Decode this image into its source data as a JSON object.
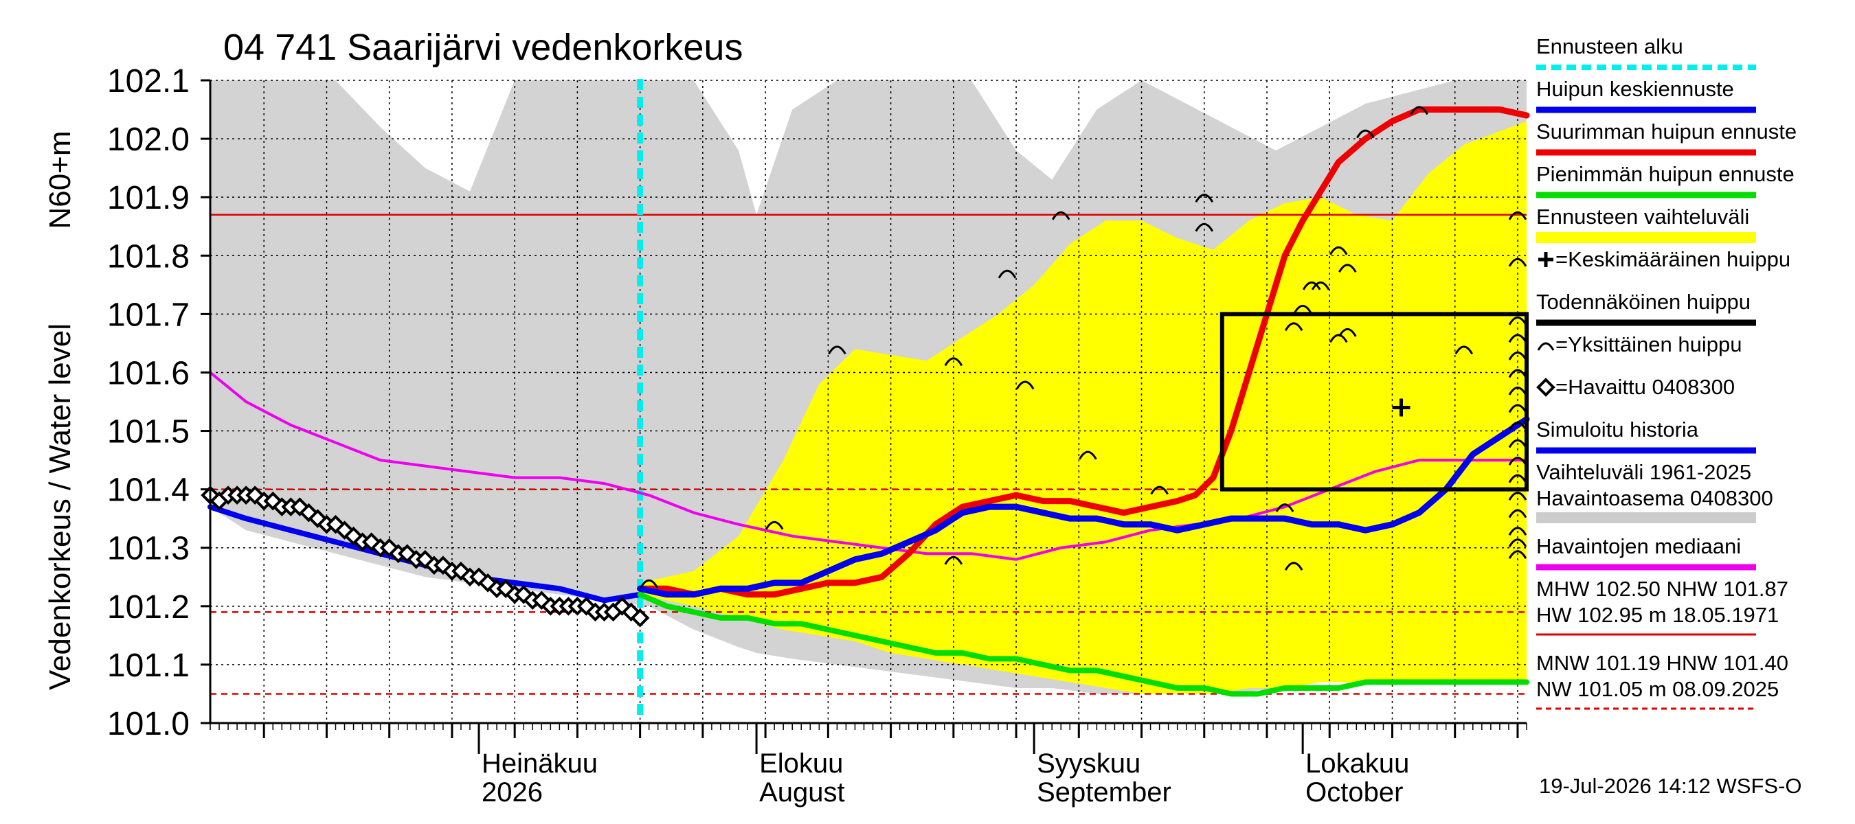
{
  "chart_data": {
    "type": "line",
    "title": "04 741 Saarijärvi vedenkorkeus",
    "ylabel_main": "Vedenkorkeus / Water level",
    "ylabel_unit": "N60+m",
    "ylim": [
      101.0,
      102.1
    ],
    "yticks": [
      "101.0",
      "101.1",
      "101.2",
      "101.3",
      "101.4",
      "101.5",
      "101.6",
      "101.7",
      "101.8",
      "101.9",
      "102.0",
      "102.1"
    ],
    "xlim": [
      "2026-06-01",
      "2026-10-26"
    ],
    "month_labels": [
      {
        "date": "2026-07-01",
        "line1": "Heinäkuu",
        "line2": "2026"
      },
      {
        "date": "2026-08-01",
        "line1": "Elokuu",
        "line2": "August"
      },
      {
        "date": "2026-09-01",
        "line1": "Syyskuu",
        "line2": "September"
      },
      {
        "date": "2026-10-01",
        "line1": "Lokakuu",
        "line2": "October"
      }
    ],
    "forecast_start": "2026-07-19",
    "reference_lines": [
      {
        "name": "NHW",
        "value": 101.87,
        "color": "#dd0000",
        "style": "solid"
      },
      {
        "name": "HNW",
        "value": 101.4,
        "color": "#dd0000",
        "style": "dashed"
      },
      {
        "name": "MNW",
        "value": 101.19,
        "color": "#dd0000",
        "style": "dashed"
      },
      {
        "name": "NW",
        "value": 101.05,
        "color": "#dd0000",
        "style": "dashed"
      }
    ],
    "history_band": {
      "x": [
        "2026-06-01",
        "2026-06-05",
        "2026-06-10",
        "2026-06-15",
        "2026-06-20",
        "2026-06-25",
        "2026-06-30",
        "2026-07-05",
        "2026-07-10",
        "2026-07-15",
        "2026-07-20",
        "2026-07-25",
        "2026-07-30",
        "2026-08-01",
        "2026-08-05",
        "2026-08-10",
        "2026-08-15",
        "2026-08-20",
        "2026-08-25",
        "2026-08-30",
        "2026-09-03",
        "2026-09-08",
        "2026-09-13",
        "2026-09-18",
        "2026-09-23",
        "2026-09-28",
        "2026-10-03",
        "2026-10-08",
        "2026-10-13",
        "2026-10-18",
        "2026-10-26"
      ],
      "upper": [
        102.1,
        102.1,
        102.1,
        102.1,
        102.02,
        101.95,
        101.91,
        102.1,
        102.1,
        102.1,
        102.1,
        102.1,
        101.98,
        101.87,
        102.05,
        102.1,
        102.1,
        102.1,
        102.1,
        101.98,
        101.93,
        102.05,
        102.1,
        102.06,
        102.02,
        101.98,
        102.02,
        102.06,
        102.08,
        102.1,
        102.1
      ],
      "lower": [
        101.37,
        101.33,
        101.31,
        101.29,
        101.27,
        101.25,
        101.24,
        101.23,
        101.22,
        101.21,
        101.2,
        101.16,
        101.13,
        101.12,
        101.11,
        101.1,
        101.09,
        101.08,
        101.07,
        101.06,
        101.06,
        101.05,
        101.05,
        101.05,
        101.05,
        101.06,
        101.07,
        101.08,
        101.09,
        101.1,
        101.12
      ]
    },
    "forecast_band": {
      "x": [
        "2026-07-19",
        "2026-07-25",
        "2026-07-30",
        "2026-08-04",
        "2026-08-08",
        "2026-08-12",
        "2026-08-16",
        "2026-08-20",
        "2026-08-24",
        "2026-08-28",
        "2026-09-01",
        "2026-09-05",
        "2026-09-09",
        "2026-09-13",
        "2026-09-17",
        "2026-09-21",
        "2026-09-25",
        "2026-09-29",
        "2026-10-03",
        "2026-10-07",
        "2026-10-11",
        "2026-10-15",
        "2026-10-19",
        "2026-10-26"
      ],
      "upper": [
        101.24,
        101.26,
        101.32,
        101.45,
        101.58,
        101.64,
        101.63,
        101.62,
        101.66,
        101.7,
        101.75,
        101.82,
        101.86,
        101.86,
        101.83,
        101.81,
        101.86,
        101.89,
        101.9,
        101.87,
        101.86,
        101.94,
        101.99,
        102.03
      ],
      "lower": [
        101.22,
        101.2,
        101.18,
        101.16,
        101.15,
        101.14,
        101.12,
        101.11,
        101.1,
        101.09,
        101.08,
        101.07,
        101.06,
        101.05,
        101.05,
        101.05,
        101.06,
        101.06,
        101.07,
        101.07,
        101.07,
        101.07,
        101.07,
        101.07
      ]
    },
    "probable_peak_box": {
      "x0": "2026-09-22",
      "x1": "2026-10-26",
      "y0": 101.4,
      "y1": 101.7
    },
    "mean_peak": {
      "x": "2026-10-12",
      "y": 101.54
    },
    "single_peaks": [
      {
        "x": "2026-07-20",
        "y": 101.24
      },
      {
        "x": "2026-08-03",
        "y": 101.34
      },
      {
        "x": "2026-08-10",
        "y": 101.64
      },
      {
        "x": "2026-08-23",
        "y": 101.62
      },
      {
        "x": "2026-08-23",
        "y": 101.28
      },
      {
        "x": "2026-08-29",
        "y": 101.77
      },
      {
        "x": "2026-08-31",
        "y": 101.58
      },
      {
        "x": "2026-09-04",
        "y": 101.87
      },
      {
        "x": "2026-09-07",
        "y": 101.46
      },
      {
        "x": "2026-09-15",
        "y": 101.4
      },
      {
        "x": "2026-09-20",
        "y": 101.9
      },
      {
        "x": "2026-09-20",
        "y": 101.85
      },
      {
        "x": "2026-09-30",
        "y": 101.68
      },
      {
        "x": "2026-10-01",
        "y": 101.71
      },
      {
        "x": "2026-09-29",
        "y": 101.37
      },
      {
        "x": "2026-09-30",
        "y": 101.27
      },
      {
        "x": "2026-10-02",
        "y": 101.75
      },
      {
        "x": "2026-10-03",
        "y": 101.75
      },
      {
        "x": "2026-10-05",
        "y": 101.81
      },
      {
        "x": "2026-10-06",
        "y": 101.78
      },
      {
        "x": "2026-10-05",
        "y": 101.66
      },
      {
        "x": "2026-10-06",
        "y": 101.67
      },
      {
        "x": "2026-10-08",
        "y": 102.01
      },
      {
        "x": "2026-10-14",
        "y": 102.05
      },
      {
        "x": "2026-10-19",
        "y": 101.64
      },
      {
        "x": "2026-10-25",
        "y": 101.87
      },
      {
        "x": "2026-10-25",
        "y": 101.79
      },
      {
        "x": "2026-10-25",
        "y": 101.69
      },
      {
        "x": "2026-10-25",
        "y": 101.66
      },
      {
        "x": "2026-10-25",
        "y": 101.63
      },
      {
        "x": "2026-10-25",
        "y": 101.6
      },
      {
        "x": "2026-10-25",
        "y": 101.57
      },
      {
        "x": "2026-10-25",
        "y": 101.54
      },
      {
        "x": "2026-10-25",
        "y": 101.51
      },
      {
        "x": "2026-10-25",
        "y": 101.48
      },
      {
        "x": "2026-10-25",
        "y": 101.45
      },
      {
        "x": "2026-10-25",
        "y": 101.42
      },
      {
        "x": "2026-10-25",
        "y": 101.39
      },
      {
        "x": "2026-10-25",
        "y": 101.36
      },
      {
        "x": "2026-10-25",
        "y": 101.33
      },
      {
        "x": "2026-10-25",
        "y": 101.31
      },
      {
        "x": "2026-10-25",
        "y": 101.29
      }
    ],
    "series": [
      {
        "name": "Havaintojen mediaani",
        "color": "#ee00ee",
        "x": [
          "2026-06-01",
          "2026-06-05",
          "2026-06-10",
          "2026-06-15",
          "2026-06-20",
          "2026-06-25",
          "2026-06-30",
          "2026-07-05",
          "2026-07-10",
          "2026-07-15",
          "2026-07-20",
          "2026-07-25",
          "2026-07-30",
          "2026-08-05",
          "2026-08-10",
          "2026-08-15",
          "2026-08-20",
          "2026-08-25",
          "2026-08-30",
          "2026-09-04",
          "2026-09-09",
          "2026-09-14",
          "2026-09-19",
          "2026-09-24",
          "2026-09-29",
          "2026-10-04",
          "2026-10-09",
          "2026-10-14",
          "2026-10-19",
          "2026-10-26"
        ],
        "values": [
          101.6,
          101.55,
          101.51,
          101.48,
          101.45,
          101.44,
          101.43,
          101.42,
          101.42,
          101.41,
          101.39,
          101.36,
          101.34,
          101.32,
          101.31,
          101.3,
          101.29,
          101.29,
          101.28,
          101.3,
          101.31,
          101.33,
          101.34,
          101.35,
          101.37,
          101.4,
          101.43,
          101.45,
          101.45,
          101.45
        ]
      },
      {
        "name": "Simuloitu historia",
        "color": "#0000ee",
        "x": [
          "2026-06-01",
          "2026-06-05",
          "2026-06-10",
          "2026-06-15",
          "2026-06-20",
          "2026-06-25",
          "2026-06-30",
          "2026-07-05",
          "2026-07-10",
          "2026-07-15",
          "2026-07-19"
        ],
        "values": [
          101.37,
          101.35,
          101.33,
          101.31,
          101.29,
          101.27,
          101.25,
          101.24,
          101.23,
          101.21,
          101.22
        ]
      },
      {
        "name": "Havaittu 0408300",
        "color": "#000000",
        "x": [
          "2026-06-01",
          "2026-06-02",
          "2026-06-03",
          "2026-06-04",
          "2026-06-05",
          "2026-06-06",
          "2026-06-07",
          "2026-06-08",
          "2026-06-09",
          "2026-06-10",
          "2026-06-11",
          "2026-06-12",
          "2026-06-13",
          "2026-06-14",
          "2026-06-15",
          "2026-06-16",
          "2026-06-17",
          "2026-06-18",
          "2026-06-19",
          "2026-06-20",
          "2026-06-21",
          "2026-06-22",
          "2026-06-23",
          "2026-06-24",
          "2026-06-25",
          "2026-06-26",
          "2026-06-27",
          "2026-06-28",
          "2026-06-29",
          "2026-06-30",
          "2026-07-01",
          "2026-07-02",
          "2026-07-03",
          "2026-07-04",
          "2026-07-05",
          "2026-07-06",
          "2026-07-07",
          "2026-07-08",
          "2026-07-09",
          "2026-07-10",
          "2026-07-11",
          "2026-07-12",
          "2026-07-13",
          "2026-07-14",
          "2026-07-15",
          "2026-07-16",
          "2026-07-17",
          "2026-07-18",
          "2026-07-19"
        ],
        "values": [
          101.39,
          101.38,
          101.39,
          101.39,
          101.39,
          101.39,
          101.38,
          101.38,
          101.37,
          101.37,
          101.37,
          101.36,
          101.35,
          101.34,
          101.34,
          101.33,
          101.32,
          101.31,
          101.31,
          101.3,
          101.3,
          101.29,
          101.29,
          101.28,
          101.28,
          101.27,
          101.27,
          101.26,
          101.26,
          101.25,
          101.25,
          101.24,
          101.23,
          101.23,
          101.22,
          101.22,
          101.21,
          101.21,
          101.2,
          101.2,
          101.2,
          101.2,
          101.2,
          101.19,
          101.19,
          101.19,
          101.2,
          101.19,
          101.18
        ]
      },
      {
        "name": "Huipun keskiennuste",
        "color": "#0000ee",
        "x": [
          "2026-07-19",
          "2026-07-22",
          "2026-07-25",
          "2026-07-28",
          "2026-07-31",
          "2026-08-03",
          "2026-08-06",
          "2026-08-09",
          "2026-08-12",
          "2026-08-15",
          "2026-08-18",
          "2026-08-21",
          "2026-08-24",
          "2026-08-27",
          "2026-08-30",
          "2026-09-02",
          "2026-09-05",
          "2026-09-08",
          "2026-09-11",
          "2026-09-14",
          "2026-09-17",
          "2026-09-20",
          "2026-09-23",
          "2026-09-26",
          "2026-09-29",
          "2026-10-02",
          "2026-10-05",
          "2026-10-08",
          "2026-10-11",
          "2026-10-14",
          "2026-10-17",
          "2026-10-20",
          "2026-10-23",
          "2026-10-26"
        ],
        "values": [
          101.23,
          101.22,
          101.22,
          101.23,
          101.23,
          101.24,
          101.24,
          101.26,
          101.28,
          101.29,
          101.31,
          101.33,
          101.36,
          101.37,
          101.37,
          101.36,
          101.35,
          101.35,
          101.34,
          101.34,
          101.33,
          101.34,
          101.35,
          101.35,
          101.35,
          101.34,
          101.34,
          101.33,
          101.34,
          101.36,
          101.4,
          101.46,
          101.49,
          101.52
        ]
      },
      {
        "name": "Suurimman huipun ennuste",
        "color": "#ee0000",
        "x": [
          "2026-07-19",
          "2026-07-22",
          "2026-07-25",
          "2026-07-28",
          "2026-07-31",
          "2026-08-03",
          "2026-08-06",
          "2026-08-09",
          "2026-08-12",
          "2026-08-15",
          "2026-08-18",
          "2026-08-21",
          "2026-08-24",
          "2026-08-27",
          "2026-08-30",
          "2026-09-02",
          "2026-09-05",
          "2026-09-08",
          "2026-09-11",
          "2026-09-14",
          "2026-09-17",
          "2026-09-19",
          "2026-09-21",
          "2026-09-23",
          "2026-09-25",
          "2026-09-27",
          "2026-09-29",
          "2026-10-01",
          "2026-10-03",
          "2026-10-05",
          "2026-10-08",
          "2026-10-11",
          "2026-10-14",
          "2026-10-17",
          "2026-10-20",
          "2026-10-23",
          "2026-10-26"
        ],
        "values": [
          101.23,
          101.23,
          101.22,
          101.23,
          101.22,
          101.22,
          101.23,
          101.24,
          101.24,
          101.25,
          101.29,
          101.34,
          101.37,
          101.38,
          101.39,
          101.38,
          101.38,
          101.37,
          101.36,
          101.37,
          101.38,
          101.39,
          101.42,
          101.5,
          101.6,
          101.7,
          101.8,
          101.86,
          101.91,
          101.96,
          102.0,
          102.03,
          102.05,
          102.05,
          102.05,
          102.05,
          102.04
        ]
      },
      {
        "name": "Pienimmän huipun ennuste",
        "color": "#00dd00",
        "x": [
          "2026-07-19",
          "2026-07-22",
          "2026-07-25",
          "2026-07-28",
          "2026-07-31",
          "2026-08-03",
          "2026-08-06",
          "2026-08-09",
          "2026-08-12",
          "2026-08-15",
          "2026-08-18",
          "2026-08-21",
          "2026-08-24",
          "2026-08-27",
          "2026-08-30",
          "2026-09-02",
          "2026-09-05",
          "2026-09-08",
          "2026-09-11",
          "2026-09-14",
          "2026-09-17",
          "2026-09-20",
          "2026-09-23",
          "2026-09-26",
          "2026-09-29",
          "2026-10-02",
          "2026-10-05",
          "2026-10-08",
          "2026-10-11",
          "2026-10-14",
          "2026-10-17",
          "2026-10-20",
          "2026-10-23",
          "2026-10-26"
        ],
        "values": [
          101.22,
          101.2,
          101.19,
          101.18,
          101.18,
          101.17,
          101.17,
          101.16,
          101.15,
          101.14,
          101.13,
          101.12,
          101.12,
          101.11,
          101.11,
          101.1,
          101.09,
          101.09,
          101.08,
          101.07,
          101.06,
          101.06,
          101.05,
          101.05,
          101.06,
          101.06,
          101.06,
          101.07,
          101.07,
          101.07,
          101.07,
          101.07,
          101.07,
          101.07
        ]
      }
    ],
    "legend": [
      {
        "kind": "dashline",
        "label": "Ennusteen alku",
        "color": "#00eeee"
      },
      {
        "kind": "line",
        "label": "Huipun keskiennuste",
        "color": "#0000ee"
      },
      {
        "kind": "line",
        "label": "Suurimman huipun ennuste",
        "color": "#ee0000"
      },
      {
        "kind": "line",
        "label": "Pienimmän huipun ennuste",
        "color": "#00dd00"
      },
      {
        "kind": "band",
        "label": "Ennusteen vaihteluväli",
        "color": "#ffff00"
      },
      {
        "kind": "plus",
        "label": "=Keskimääräinen huippu",
        "color": "#000000"
      },
      {
        "kind": "line",
        "label": "Todennäköinen huippu",
        "color": "#000000"
      },
      {
        "kind": "arc",
        "label": "=Yksittäinen huippu",
        "color": "#000000"
      },
      {
        "kind": "diamond",
        "label": "=Havaittu 0408300",
        "color": "#000000"
      },
      {
        "kind": "line",
        "label": "Simuloitu historia",
        "color": "#0000ee"
      },
      {
        "kind": "band2",
        "label": "Vaihteluväli 1961-2025",
        "label2": "Havaintoasema 0408300",
        "color": "#cccccc"
      },
      {
        "kind": "line",
        "label": "Havaintojen mediaani",
        "color": "#ee00ee"
      },
      {
        "kind": "stat",
        "label": "MHW 102.50 NHW 101.87",
        "label2": "HW 102.95 m 18.05.1971",
        "color": "#dd0000",
        "dash": false
      },
      {
        "kind": "stat",
        "label": "MNW 101.19 HNW 101.40",
        "label2": "NW 101.05 m 08.09.2025",
        "color": "#dd0000",
        "dash": true
      }
    ],
    "footer": "19-Jul-2026 14:12 WSFS-O"
  }
}
